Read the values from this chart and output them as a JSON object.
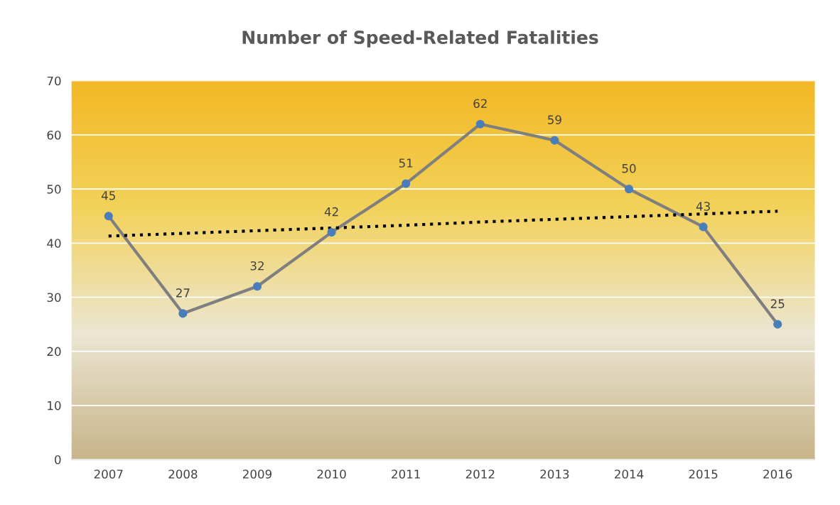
{
  "chart_data": {
    "type": "line",
    "title": "Number of Speed-Related Fatalities",
    "categories": [
      "2007",
      "2008",
      "2009",
      "2010",
      "2011",
      "2012",
      "2013",
      "2014",
      "2015",
      "2016"
    ],
    "series": [
      {
        "color": "#7f7f7f",
        "colors": [
          "#4a7ebb",
          "#4a7ebb",
          "#4a7ebb",
          "#4a7ebb",
          "#4a7ebb",
          "#4a7ebb",
          "#4a7ebb",
          "#4a7ebb",
          "#4a7ebb",
          "#4a7ebb"
        ],
        "marker": "circle",
        "line_style": "solid",
        "data_labels": true,
        "values": [
          45,
          27,
          32,
          42,
          51,
          62,
          59,
          50,
          43,
          25
        ]
      },
      {
        "color": "#000000",
        "marker": "none",
        "line_style": "dotted",
        "values": [
          41.3,
          41.8,
          42.3,
          42.8,
          43.3,
          43.9,
          44.4,
          44.9,
          45.4,
          45.9
        ]
      }
    ],
    "ylim": [
      0,
      70
    ],
    "yticks": [
      0,
      10,
      20,
      30,
      40,
      50,
      60,
      70
    ],
    "grid": "y",
    "legend": false
  }
}
